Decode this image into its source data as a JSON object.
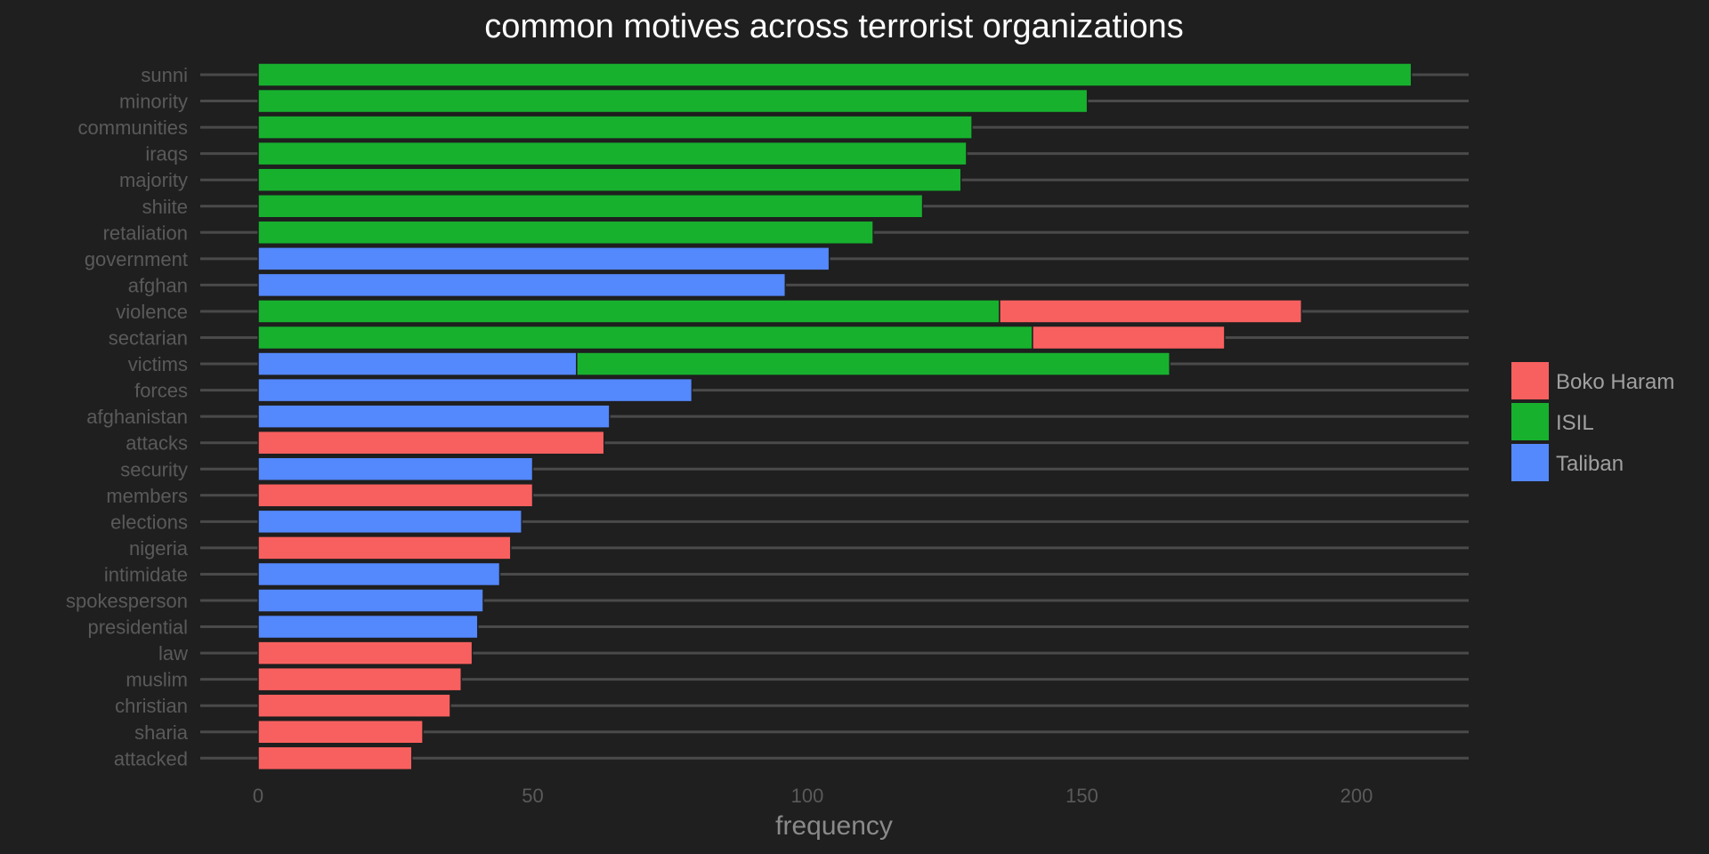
{
  "chart_data": {
    "type": "bar",
    "orientation": "horizontal",
    "stacked": true,
    "title": "common motives across terrorist organizations",
    "xlabel": "frequency",
    "ylabel": "",
    "xlim": [
      -10,
      220
    ],
    "xticks": [
      0,
      50,
      100,
      150,
      200
    ],
    "grid": true,
    "legend_position": "right",
    "colors": {
      "Boko Haram": "#f8605f",
      "ISIL": "#17b12e",
      "Taliban": "#5488fd"
    },
    "legend": [
      "Boko Haram",
      "ISIL",
      "Taliban"
    ],
    "categories": [
      "sunni",
      "minority",
      "communities",
      "iraqs",
      "majority",
      "shiite",
      "retaliation",
      "government",
      "afghan",
      "violence",
      "sectarian",
      "victims",
      "forces",
      "afghanistan",
      "attacks",
      "security",
      "members",
      "elections",
      "nigeria",
      "intimidate",
      "spokesperson",
      "presidential",
      "law",
      "muslim",
      "christian",
      "sharia",
      "attacked"
    ],
    "bars": [
      {
        "category": "sunni",
        "segments": [
          {
            "group": "ISIL",
            "value": 210
          }
        ]
      },
      {
        "category": "minority",
        "segments": [
          {
            "group": "ISIL",
            "value": 151
          }
        ]
      },
      {
        "category": "communities",
        "segments": [
          {
            "group": "ISIL",
            "value": 130
          }
        ]
      },
      {
        "category": "iraqs",
        "segments": [
          {
            "group": "ISIL",
            "value": 129
          }
        ]
      },
      {
        "category": "majority",
        "segments": [
          {
            "group": "ISIL",
            "value": 128
          }
        ]
      },
      {
        "category": "shiite",
        "segments": [
          {
            "group": "ISIL",
            "value": 121
          }
        ]
      },
      {
        "category": "retaliation",
        "segments": [
          {
            "group": "ISIL",
            "value": 112
          }
        ]
      },
      {
        "category": "government",
        "segments": [
          {
            "group": "Taliban",
            "value": 104
          }
        ]
      },
      {
        "category": "afghan",
        "segments": [
          {
            "group": "Taliban",
            "value": 96
          }
        ]
      },
      {
        "category": "violence",
        "segments": [
          {
            "group": "ISIL",
            "value": 135
          },
          {
            "group": "Boko Haram",
            "value": 55
          }
        ]
      },
      {
        "category": "sectarian",
        "segments": [
          {
            "group": "ISIL",
            "value": 141
          },
          {
            "group": "Boko Haram",
            "value": 35
          }
        ]
      },
      {
        "category": "victims",
        "segments": [
          {
            "group": "Taliban",
            "value": 58
          },
          {
            "group": "ISIL",
            "value": 108
          }
        ]
      },
      {
        "category": "forces",
        "segments": [
          {
            "group": "Taliban",
            "value": 79
          }
        ]
      },
      {
        "category": "afghanistan",
        "segments": [
          {
            "group": "Taliban",
            "value": 64
          }
        ]
      },
      {
        "category": "attacks",
        "segments": [
          {
            "group": "Boko Haram",
            "value": 63
          }
        ]
      },
      {
        "category": "security",
        "segments": [
          {
            "group": "Taliban",
            "value": 50
          }
        ]
      },
      {
        "category": "members",
        "segments": [
          {
            "group": "Boko Haram",
            "value": 50
          }
        ]
      },
      {
        "category": "elections",
        "segments": [
          {
            "group": "Taliban",
            "value": 48
          }
        ]
      },
      {
        "category": "nigeria",
        "segments": [
          {
            "group": "Boko Haram",
            "value": 46
          }
        ]
      },
      {
        "category": "intimidate",
        "segments": [
          {
            "group": "Taliban",
            "value": 44
          }
        ]
      },
      {
        "category": "spokesperson",
        "segments": [
          {
            "group": "Taliban",
            "value": 41
          }
        ]
      },
      {
        "category": "presidential",
        "segments": [
          {
            "group": "Taliban",
            "value": 40
          }
        ]
      },
      {
        "category": "law",
        "segments": [
          {
            "group": "Boko Haram",
            "value": 39
          }
        ]
      },
      {
        "category": "muslim",
        "segments": [
          {
            "group": "Boko Haram",
            "value": 37
          }
        ]
      },
      {
        "category": "christian",
        "segments": [
          {
            "group": "Boko Haram",
            "value": 35
          }
        ]
      },
      {
        "category": "sharia",
        "segments": [
          {
            "group": "Boko Haram",
            "value": 30
          }
        ]
      },
      {
        "category": "attacked",
        "segments": [
          {
            "group": "Boko Haram",
            "value": 28
          }
        ]
      }
    ]
  }
}
